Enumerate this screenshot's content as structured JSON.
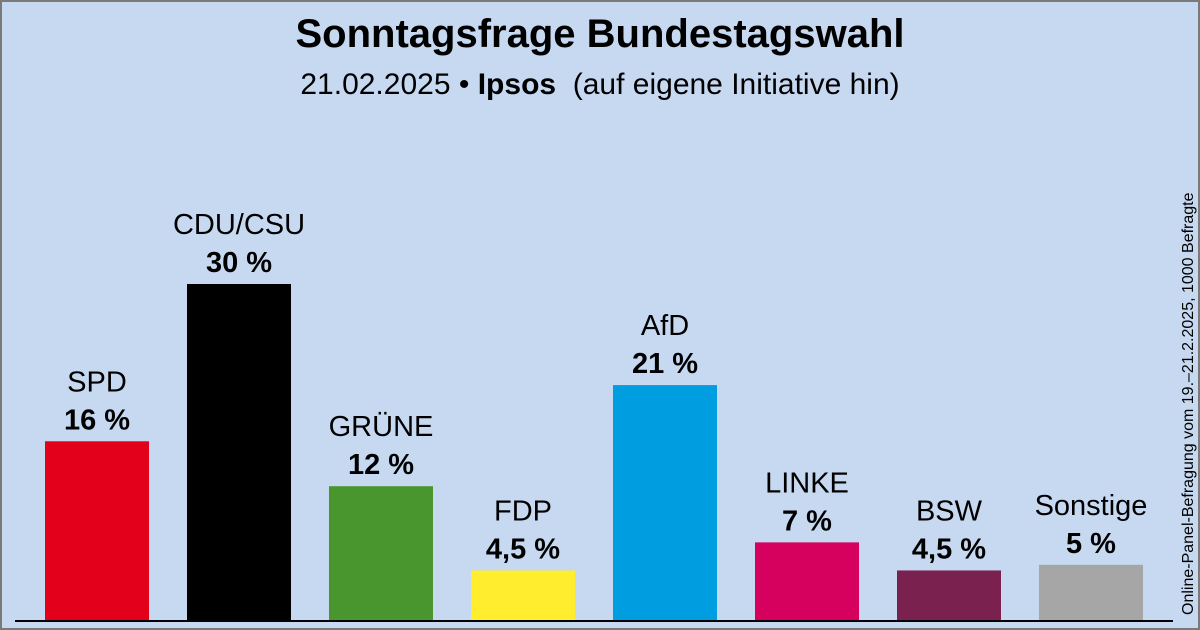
{
  "header": {
    "title": "Sonntagsfrage Bundestagswahl",
    "subtitle_date": "21.02.2025",
    "subtitle_sep": "•",
    "subtitle_institute": "Ipsos",
    "subtitle_note": "(auf eigene Initiative hin)"
  },
  "source_note": "Online-Panel-Befragung vom 19.–21.2.2025, 1000 Befragte",
  "chart_data": {
    "type": "bar",
    "title": "Sonntagsfrage Bundestagswahl",
    "categories": [
      "SPD",
      "CDU/CSU",
      "GRÜNE",
      "FDP",
      "AfD",
      "LINKE",
      "BSW",
      "Sonstige"
    ],
    "values": [
      16,
      30,
      12,
      4.5,
      21,
      7,
      4.5,
      5
    ],
    "value_labels": [
      "16 %",
      "30 %",
      "12 %",
      "4,5 %",
      "21 %",
      "7 %",
      "4,5 %",
      "5 %"
    ],
    "colors": [
      "#e3001b",
      "#000000",
      "#4a962e",
      "#ffed2e",
      "#009ee0",
      "#d6005f",
      "#7b214f",
      "#a6a6a6"
    ],
    "ylim": [
      0,
      30
    ],
    "grid": false,
    "legend": "none"
  }
}
